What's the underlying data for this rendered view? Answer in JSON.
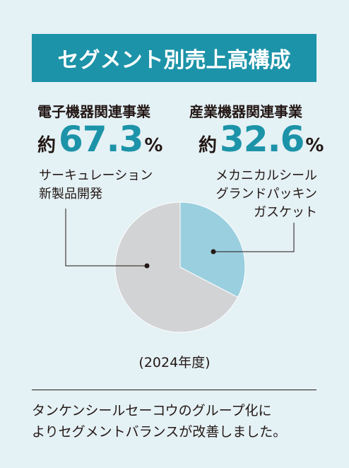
{
  "title": "セグメント別売上高構成",
  "colors": {
    "accent": "#1c93a8",
    "electronic": "#d2d3d4",
    "industrial": "#9acfdf",
    "text": "#231815",
    "background": "#e4f1f5"
  },
  "segments": [
    {
      "name": "電子機器関連事業",
      "prefix": "約",
      "value": "67.3",
      "unit": "%",
      "products": [
        "サーキュレーション",
        "新製品開発"
      ]
    },
    {
      "name": "産業機器関連事業",
      "prefix": "約",
      "value": "32.6",
      "unit": "%",
      "products": [
        "メカニカルシール",
        "グランドパッキン",
        "ガスケット"
      ]
    }
  ],
  "year_label": "(2024年度)",
  "note_lines": [
    "タンケンシールセーコウのグループ化に",
    "よりセグメントバランスが改善しました。"
  ],
  "chart_data": {
    "type": "pie",
    "title": "セグメント別売上高構成",
    "slices": [
      {
        "label": "電子機器関連事業",
        "value": 67.3,
        "color": "#d2d3d4"
      },
      {
        "label": "産業機器関連事業",
        "value": 32.6,
        "color": "#9acfdf"
      }
    ],
    "start": "12 o'clock",
    "direction": "clockwise",
    "period": "2024年度"
  }
}
